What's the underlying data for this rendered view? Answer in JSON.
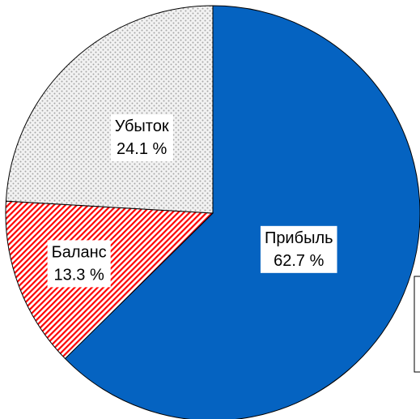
{
  "chart_data": {
    "type": "pie",
    "categories": [
      "Прибыль",
      "Баланс",
      "Убыток"
    ],
    "values": [
      62.7,
      13.3,
      24.1
    ],
    "value_labels": [
      "62.7 %",
      "13.3 %",
      "24.1 %"
    ],
    "colors": [
      "#0563c1",
      "#ff0000",
      "#a6a6a6"
    ],
    "patterns": [
      "solid",
      "diagonal",
      "dots"
    ]
  }
}
